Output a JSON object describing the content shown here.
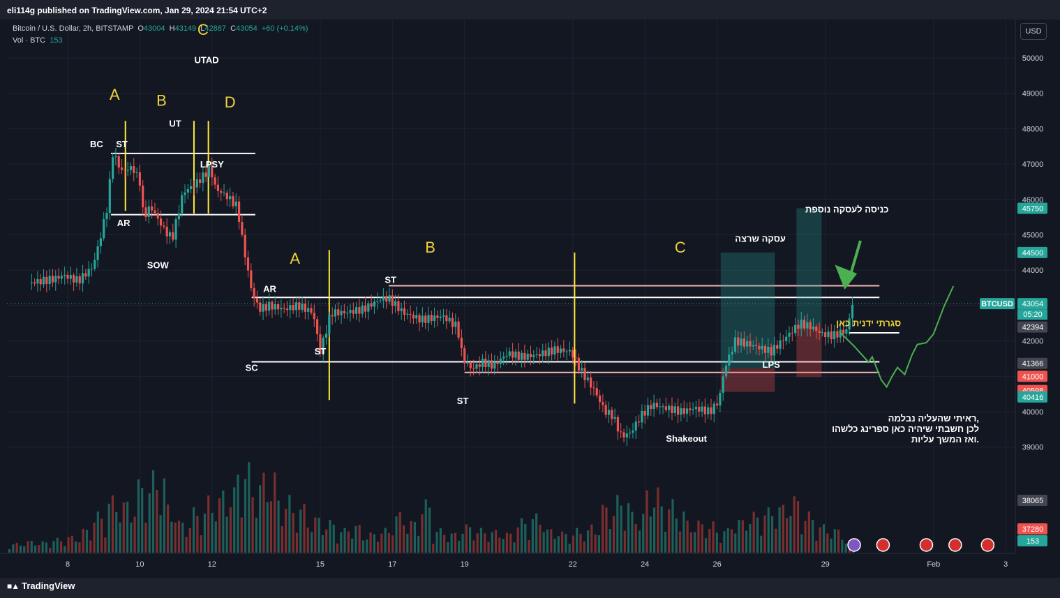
{
  "header": {
    "publisher": "eli114g published on TradingView.com, Jan 29, 2024 21:54 UTC+2"
  },
  "legend": {
    "symbol": "Bitcoin / U.S. Dollar, 2h, BITSTAMP",
    "o_label": "O",
    "o_value": "43004",
    "h_label": "H",
    "h_value": "43149",
    "l_label": "L",
    "l_value": "42887",
    "c_label": "C",
    "c_value": "43054",
    "change": "+60 (+0.14%)",
    "vol_label": "Vol · BTC",
    "vol_value": "153"
  },
  "currency_button": "USD",
  "footer": {
    "brand": "TradingView",
    "logo_icon": "tradingview-logo-icon"
  },
  "colors": {
    "background": "#131722",
    "up": "#26a69a",
    "down": "#ef5350",
    "wave_label": "#f0d23c",
    "phase_line": "#ffeb3b",
    "projection": "#4caf50",
    "level": "#ffffff"
  },
  "chart_data": {
    "type": "candlestick",
    "title": "Bitcoin / U.S. Dollar, 2h, BITSTAMP",
    "ylim": [
      37000,
      51000
    ],
    "x_ticks": [
      "8",
      "10",
      "12",
      "15",
      "17",
      "19",
      "22",
      "24",
      "26",
      "29",
      "Feb",
      "3"
    ],
    "y_ticks": [
      "39000",
      "40000",
      "41000",
      "42000",
      "43000",
      "44000",
      "45000",
      "46000",
      "47000",
      "48000",
      "49000",
      "50000"
    ],
    "price_path": [
      [
        7.0,
        43650
      ],
      [
        7.6,
        43750
      ],
      [
        7.9,
        43850
      ],
      [
        8.3,
        43700
      ],
      [
        8.7,
        44100
      ],
      [
        8.9,
        44900
      ],
      [
        9.1,
        45800
      ],
      [
        9.25,
        47300
      ],
      [
        9.5,
        46800
      ],
      [
        9.8,
        46900
      ],
      [
        10.0,
        46500
      ],
      [
        10.1,
        45500
      ],
      [
        10.3,
        45800
      ],
      [
        10.7,
        45100
      ],
      [
        10.9,
        44900
      ],
      [
        11.2,
        46200
      ],
      [
        11.5,
        46400
      ],
      [
        11.8,
        46700
      ],
      [
        11.95,
        46900
      ],
      [
        12.1,
        46300
      ],
      [
        12.4,
        46100
      ],
      [
        12.7,
        45800
      ],
      [
        12.85,
        44800
      ],
      [
        13.1,
        43400
      ],
      [
        13.3,
        42900
      ],
      [
        13.6,
        43000
      ],
      [
        14.0,
        42900
      ],
      [
        14.4,
        43000
      ],
      [
        14.8,
        42800
      ],
      [
        15.0,
        41700
      ],
      [
        15.3,
        42800
      ],
      [
        15.7,
        42800
      ],
      [
        16.2,
        42900
      ],
      [
        16.7,
        43200
      ],
      [
        16.9,
        43200
      ],
      [
        17.3,
        42800
      ],
      [
        17.8,
        42600
      ],
      [
        18.4,
        42700
      ],
      [
        18.8,
        42400
      ],
      [
        18.95,
        41500
      ],
      [
        19.2,
        41200
      ],
      [
        19.5,
        41400
      ],
      [
        19.8,
        41300
      ],
      [
        20.2,
        41650
      ],
      [
        20.6,
        41550
      ],
      [
        21.0,
        41600
      ],
      [
        21.5,
        41750
      ],
      [
        21.95,
        41700
      ],
      [
        22.2,
        41200
      ],
      [
        22.6,
        40600
      ],
      [
        22.9,
        40000
      ],
      [
        23.1,
        39900
      ],
      [
        23.35,
        39300
      ],
      [
        23.6,
        39400
      ],
      [
        23.9,
        39900
      ],
      [
        24.2,
        40200
      ],
      [
        24.6,
        40100
      ],
      [
        25.0,
        40000
      ],
      [
        25.4,
        40100
      ],
      [
        25.8,
        40000
      ],
      [
        26.05,
        40300
      ],
      [
        26.2,
        41200
      ],
      [
        26.5,
        42000
      ],
      [
        26.9,
        41900
      ],
      [
        27.2,
        41800
      ],
      [
        27.5,
        41700
      ],
      [
        27.9,
        42100
      ],
      [
        28.3,
        42500
      ],
      [
        28.6,
        42400
      ],
      [
        28.9,
        42200
      ],
      [
        29.2,
        42150
      ],
      [
        29.6,
        42300
      ],
      [
        29.75,
        43054
      ]
    ],
    "volume_btc": [
      120,
      150,
      140,
      180,
      210,
      300,
      500,
      700,
      650,
      900,
      1000,
      600,
      400,
      550,
      700,
      800,
      1100,
      900,
      1000,
      700,
      600,
      450,
      400,
      300,
      350,
      250,
      300,
      500,
      400,
      650,
      300,
      250,
      350,
      300,
      280,
      250,
      420,
      480,
      300,
      260,
      300,
      350,
      600,
      700,
      500,
      800,
      650,
      550,
      400,
      380,
      300,
      420,
      500,
      550,
      600,
      700,
      500,
      350,
      300,
      153
    ],
    "price_scale_labels": [
      {
        "value": 45750,
        "text": "45750",
        "color": "#26a69a"
      },
      {
        "value": 44500,
        "text": "44500",
        "color": "#26a69a"
      },
      {
        "value": 43054,
        "text": "43054",
        "color": "#26a69a"
      },
      {
        "value": 42394,
        "text": "42394",
        "color": "#434651"
      },
      {
        "value": 41366,
        "text": "41366",
        "color": "#434651"
      },
      {
        "value": 41000,
        "text": "41000",
        "color": "#ef5350"
      },
      {
        "value": 40598,
        "text": "40598",
        "color": "#ef5350"
      },
      {
        "value": 40416,
        "text": "40416",
        "color": "#26a69a"
      }
    ],
    "countdown": "05:20",
    "symbol_badge": "BTCUSD",
    "volume_scale_labels": [
      {
        "text": "38065",
        "color": "#434651"
      },
      {
        "text": "37280",
        "color": "#ef5350"
      },
      {
        "text": "153",
        "color": "#26a69a"
      }
    ],
    "horizontal_levels": [
      {
        "y0": 47300,
        "x0": 9.2,
        "x1": 13.2,
        "color": "#ffffff"
      },
      {
        "y0": 45570,
        "x0": 9.2,
        "x1": 13.2,
        "color": "#ffffff"
      },
      {
        "y0": 43560,
        "x0": 16.9,
        "x1": 30.5,
        "color": "#f4b5b5"
      },
      {
        "y0": 43230,
        "x0": 13.1,
        "x1": 30.5,
        "color": "#ffffff"
      },
      {
        "y0": 41410,
        "x0": 13.1,
        "x1": 30.5,
        "color": "#ffffff"
      },
      {
        "y0": 41110,
        "x0": 19.0,
        "x1": 30.5,
        "color": "#f4b5b5"
      },
      {
        "y0": 42230,
        "x0": 29.65,
        "x1": 31.05,
        "color": "#ffffff"
      }
    ],
    "vertical_lines": [
      {
        "x": 9.6,
        "y0": 48220,
        "y1": 45680
      },
      {
        "x": 11.5,
        "y0": 48220,
        "y1": 45600
      },
      {
        "x": 11.9,
        "y0": 48220,
        "y1": 45600
      },
      {
        "x": 15.25,
        "y0": 44570,
        "y1": 40330
      },
      {
        "x": 22.05,
        "y0": 44500,
        "y1": 40230
      }
    ],
    "wave_labels": [
      {
        "text": "A",
        "x": 9.3,
        "y": 48820,
        "size": 22
      },
      {
        "text": "B",
        "x": 10.6,
        "y": 48650,
        "size": 22
      },
      {
        "text": "C",
        "x": 11.75,
        "y": 50650,
        "size": 22
      },
      {
        "text": "D",
        "x": 12.5,
        "y": 48600,
        "size": 22
      },
      {
        "text": "A",
        "x": 14.3,
        "y": 44180,
        "size": 22
      },
      {
        "text": "B",
        "x": 18.05,
        "y": 44500,
        "size": 22
      },
      {
        "text": "C",
        "x": 24.98,
        "y": 44500,
        "size": 22
      }
    ],
    "annotations": [
      {
        "text": "BC",
        "x": 8.8,
        "y": 47480
      },
      {
        "text": "ST",
        "x": 9.5,
        "y": 47480
      },
      {
        "text": "UT",
        "x": 10.98,
        "y": 48060
      },
      {
        "text": "UTAD",
        "x": 11.85,
        "y": 49850
      },
      {
        "text": "LPSY",
        "x": 12.0,
        "y": 46900
      },
      {
        "text": "AR",
        "x": 9.55,
        "y": 45250
      },
      {
        "text": "SOW",
        "x": 10.5,
        "y": 44050
      },
      {
        "text": "AR",
        "x": 13.6,
        "y": 43380
      },
      {
        "text": "SC",
        "x": 13.1,
        "y": 41150
      },
      {
        "text": "ST",
        "x": 15.0,
        "y": 41620
      },
      {
        "text": "ST",
        "x": 16.95,
        "y": 43640
      },
      {
        "text": "ST",
        "x": 18.95,
        "y": 40220
      },
      {
        "text": "Shakeout",
        "x": 25.15,
        "y": 39150
      },
      {
        "text": "LPS",
        "x": 27.5,
        "y": 41240
      },
      {
        "text": "עסקה שרצה",
        "x": 27.2,
        "y": 44800
      },
      {
        "text": "כניסה לעסקה נוספת",
        "x": 29.6,
        "y": 45630
      },
      {
        "text": "סגרתי ידנית כאן",
        "x": 30.2,
        "y": 42420
      }
    ],
    "note_lines": [
      "ראיתי שהעליה נבלמה,",
      "לכן חשבתי שיהיה כאן ספרינג כלשהו",
      "ואז המשך עליות."
    ],
    "positions": [
      {
        "x0": 26.1,
        "x1": 27.6,
        "entry": 41230,
        "target": 44500,
        "stop": 40560
      },
      {
        "x0": 28.2,
        "x1": 28.9,
        "entry": 42420,
        "target": 45750,
        "stop": 40980
      }
    ],
    "projection_path": [
      [
        29.4,
        42250
      ],
      [
        29.8,
        41850
      ],
      [
        30.2,
        41400
      ],
      [
        30.3,
        41550
      ],
      [
        30.55,
        40900
      ],
      [
        30.7,
        40700
      ],
      [
        30.85,
        41000
      ],
      [
        31.0,
        41250
      ],
      [
        31.2,
        41050
      ],
      [
        31.4,
        41600
      ],
      [
        31.55,
        41900
      ],
      [
        31.8,
        41950
      ],
      [
        32.0,
        42200
      ],
      [
        32.3,
        43000
      ],
      [
        32.55,
        43550
      ]
    ],
    "events": [
      29.8,
      30.6,
      31.8,
      32.6,
      33.5
    ]
  }
}
